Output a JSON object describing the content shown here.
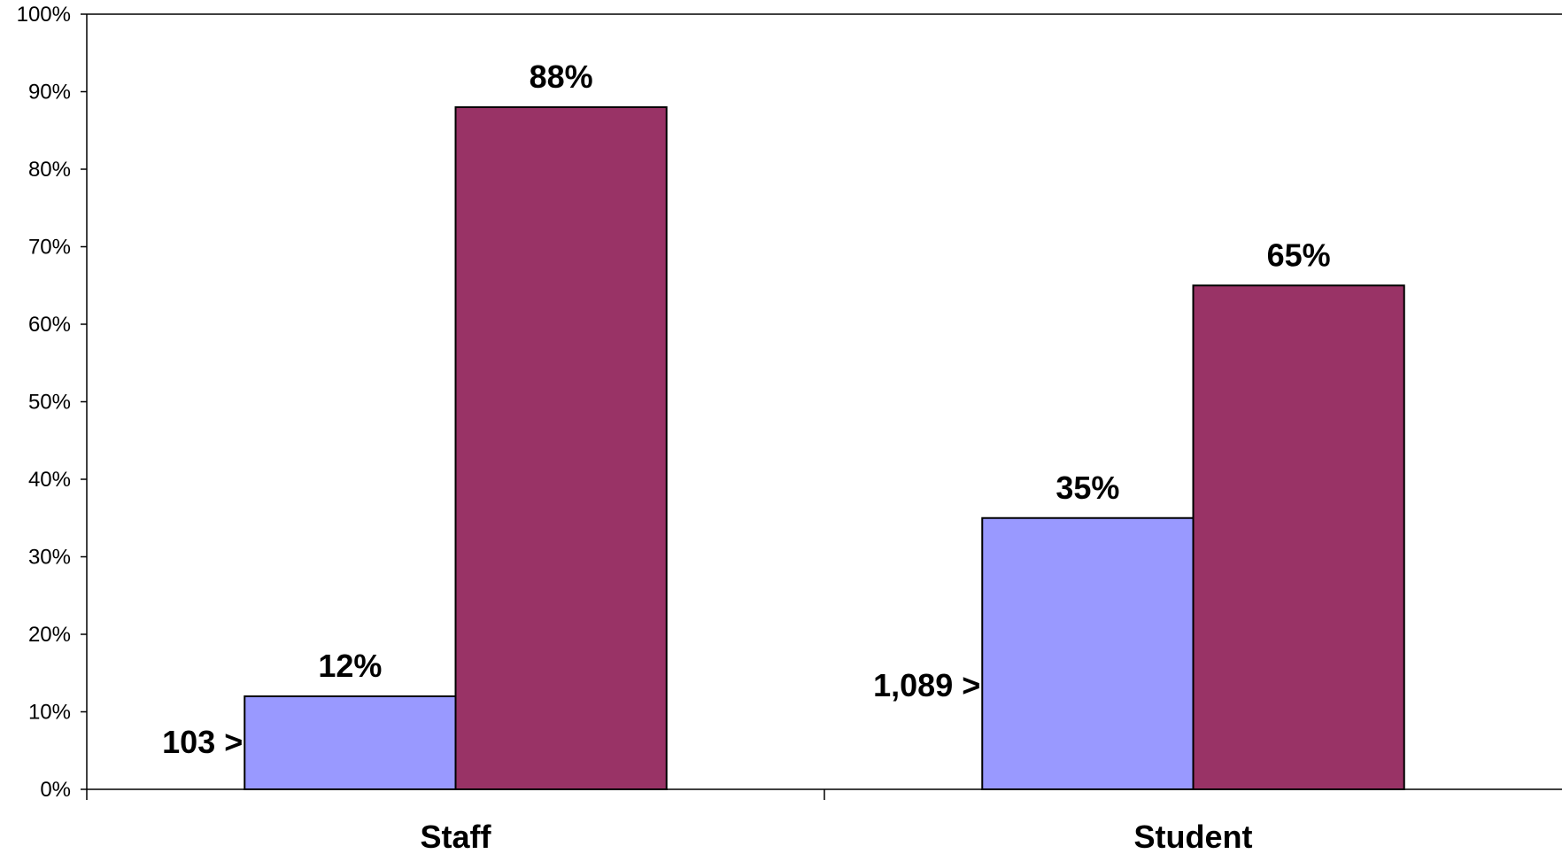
{
  "chart_data": {
    "type": "bar",
    "title": "",
    "xlabel": "",
    "ylabel": "",
    "categories": [
      "Staff",
      "Student"
    ],
    "series": [
      {
        "values": [
          12,
          35
        ],
        "color": "#9999ff",
        "labels": [
          "12%",
          "35%"
        ]
      },
      {
        "values": [
          88,
          65
        ],
        "color": "#993366",
        "labels": [
          "88%",
          "65%"
        ]
      }
    ],
    "annotations": [
      {
        "category": "Staff",
        "text": "103 >"
      },
      {
        "category": "Student",
        "text": "1,089 >"
      }
    ],
    "ylim": [
      0,
      100
    ],
    "yticks": [
      0,
      10,
      20,
      30,
      40,
      50,
      60,
      70,
      80,
      90,
      100
    ],
    "ytick_labels": [
      "0%",
      "10%",
      "20%",
      "30%",
      "40%",
      "50%",
      "60%",
      "70%",
      "80%",
      "90%",
      "100%"
    ],
    "grid": false,
    "legend": "none"
  }
}
